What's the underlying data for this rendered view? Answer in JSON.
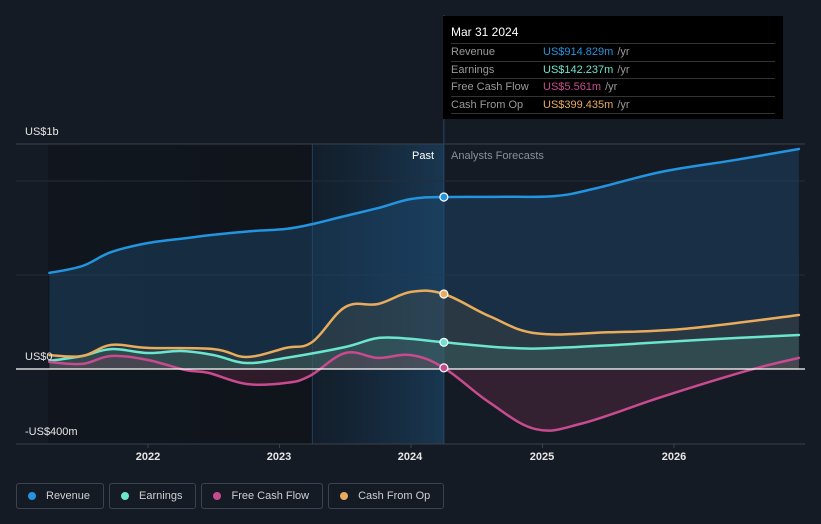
{
  "tooltip": {
    "date": "Mar 31 2024",
    "rows": [
      {
        "label": "Revenue",
        "value": "US$914.829m",
        "unit": "/yr",
        "color": "#2394df"
      },
      {
        "label": "Earnings",
        "value": "US$142.237m",
        "unit": "/yr",
        "color": "#6ce5cf"
      },
      {
        "label": "Free Cash Flow",
        "value": "US$5.561m",
        "unit": "/yr",
        "color": "#c84b8f"
      },
      {
        "label": "Cash From Op",
        "value": "US$399.435m",
        "unit": "/yr",
        "color": "#e8ac5c"
      }
    ]
  },
  "labels": {
    "past": "Past",
    "forecast": "Analysts Forecasts"
  },
  "chart_data": {
    "type": "line",
    "title": "",
    "xlabel": "",
    "ylabel": "",
    "x_unit": "year",
    "xlim": [
      2021.0,
      2027.0
    ],
    "ylim": [
      -400,
      1200
    ],
    "y_ticks": [
      {
        "value": 1000,
        "label": "US$1b"
      },
      {
        "value": 0,
        "label": "US$0"
      },
      {
        "value": -400,
        "label": "-US$400m"
      }
    ],
    "x_ticks": [
      {
        "value": 2022,
        "label": "2022"
      },
      {
        "value": 2023,
        "label": "2023"
      },
      {
        "value": 2024,
        "label": "2024"
      },
      {
        "value": 2025,
        "label": "2025"
      },
      {
        "value": 2026,
        "label": "2026"
      }
    ],
    "grid": true,
    "past_forecast_split": 2024.25,
    "highlight_start": 2023.25,
    "legend_position": "bottom-left",
    "series": [
      {
        "name": "Revenue",
        "color": "#2394df",
        "points": [
          [
            2021.25,
            511
          ],
          [
            2021.5,
            548
          ],
          [
            2021.72,
            622
          ],
          [
            2022.0,
            670
          ],
          [
            2022.3,
            697
          ],
          [
            2022.48,
            713
          ],
          [
            2022.8,
            734
          ],
          [
            2023.05,
            745
          ],
          [
            2023.25,
            771
          ],
          [
            2023.5,
            814
          ],
          [
            2023.75,
            856
          ],
          [
            2024.0,
            904
          ],
          [
            2024.25,
            915
          ],
          [
            2024.75,
            916
          ],
          [
            2025.1,
            920
          ],
          [
            2025.4,
            960
          ],
          [
            2025.9,
            1048
          ],
          [
            2026.45,
            1110
          ],
          [
            2026.95,
            1170
          ]
        ]
      },
      {
        "name": "Earnings",
        "color": "#6ce5cf",
        "points": [
          [
            2021.25,
            43
          ],
          [
            2021.5,
            69
          ],
          [
            2021.72,
            106
          ],
          [
            2022.0,
            85
          ],
          [
            2022.25,
            96
          ],
          [
            2022.5,
            74
          ],
          [
            2022.75,
            32
          ],
          [
            2023.05,
            59
          ],
          [
            2023.5,
            117
          ],
          [
            2023.75,
            165
          ],
          [
            2024.0,
            160
          ],
          [
            2024.25,
            142
          ],
          [
            2024.75,
            112
          ],
          [
            2025.1,
            112
          ],
          [
            2025.6,
            130
          ],
          [
            2026.2,
            155
          ],
          [
            2026.95,
            181
          ]
        ]
      },
      {
        "name": "Free Cash Flow",
        "color": "#c84b8f",
        "points": [
          [
            2021.25,
            37
          ],
          [
            2021.5,
            27
          ],
          [
            2021.72,
            69
          ],
          [
            2022.0,
            48
          ],
          [
            2022.28,
            -5
          ],
          [
            2022.46,
            -21
          ],
          [
            2022.75,
            -80
          ],
          [
            2023.05,
            -74
          ],
          [
            2023.23,
            -37
          ],
          [
            2023.5,
            85
          ],
          [
            2023.75,
            59
          ],
          [
            2024.0,
            74
          ],
          [
            2024.25,
            6
          ],
          [
            2024.6,
            -180
          ],
          [
            2024.95,
            -320
          ],
          [
            2025.3,
            -290
          ],
          [
            2025.9,
            -150
          ],
          [
            2026.55,
            -10
          ],
          [
            2026.95,
            59
          ]
        ]
      },
      {
        "name": "Cash From Op",
        "color": "#e8ac5c",
        "points": [
          [
            2021.25,
            74
          ],
          [
            2021.5,
            69
          ],
          [
            2021.72,
            128
          ],
          [
            2022.0,
            112
          ],
          [
            2022.5,
            106
          ],
          [
            2022.75,
            64
          ],
          [
            2023.05,
            112
          ],
          [
            2023.25,
            144
          ],
          [
            2023.5,
            330
          ],
          [
            2023.75,
            346
          ],
          [
            2024.0,
            410
          ],
          [
            2024.25,
            399
          ],
          [
            2024.6,
            280
          ],
          [
            2024.95,
            190
          ],
          [
            2025.5,
            195
          ],
          [
            2026.1,
            215
          ],
          [
            2026.95,
            287
          ]
        ]
      }
    ]
  },
  "legend": [
    {
      "label": "Revenue",
      "color": "#2394df"
    },
    {
      "label": "Earnings",
      "color": "#6ce5cf"
    },
    {
      "label": "Free Cash Flow",
      "color": "#c84b8f"
    },
    {
      "label": "Cash From Op",
      "color": "#e8ac5c"
    }
  ]
}
